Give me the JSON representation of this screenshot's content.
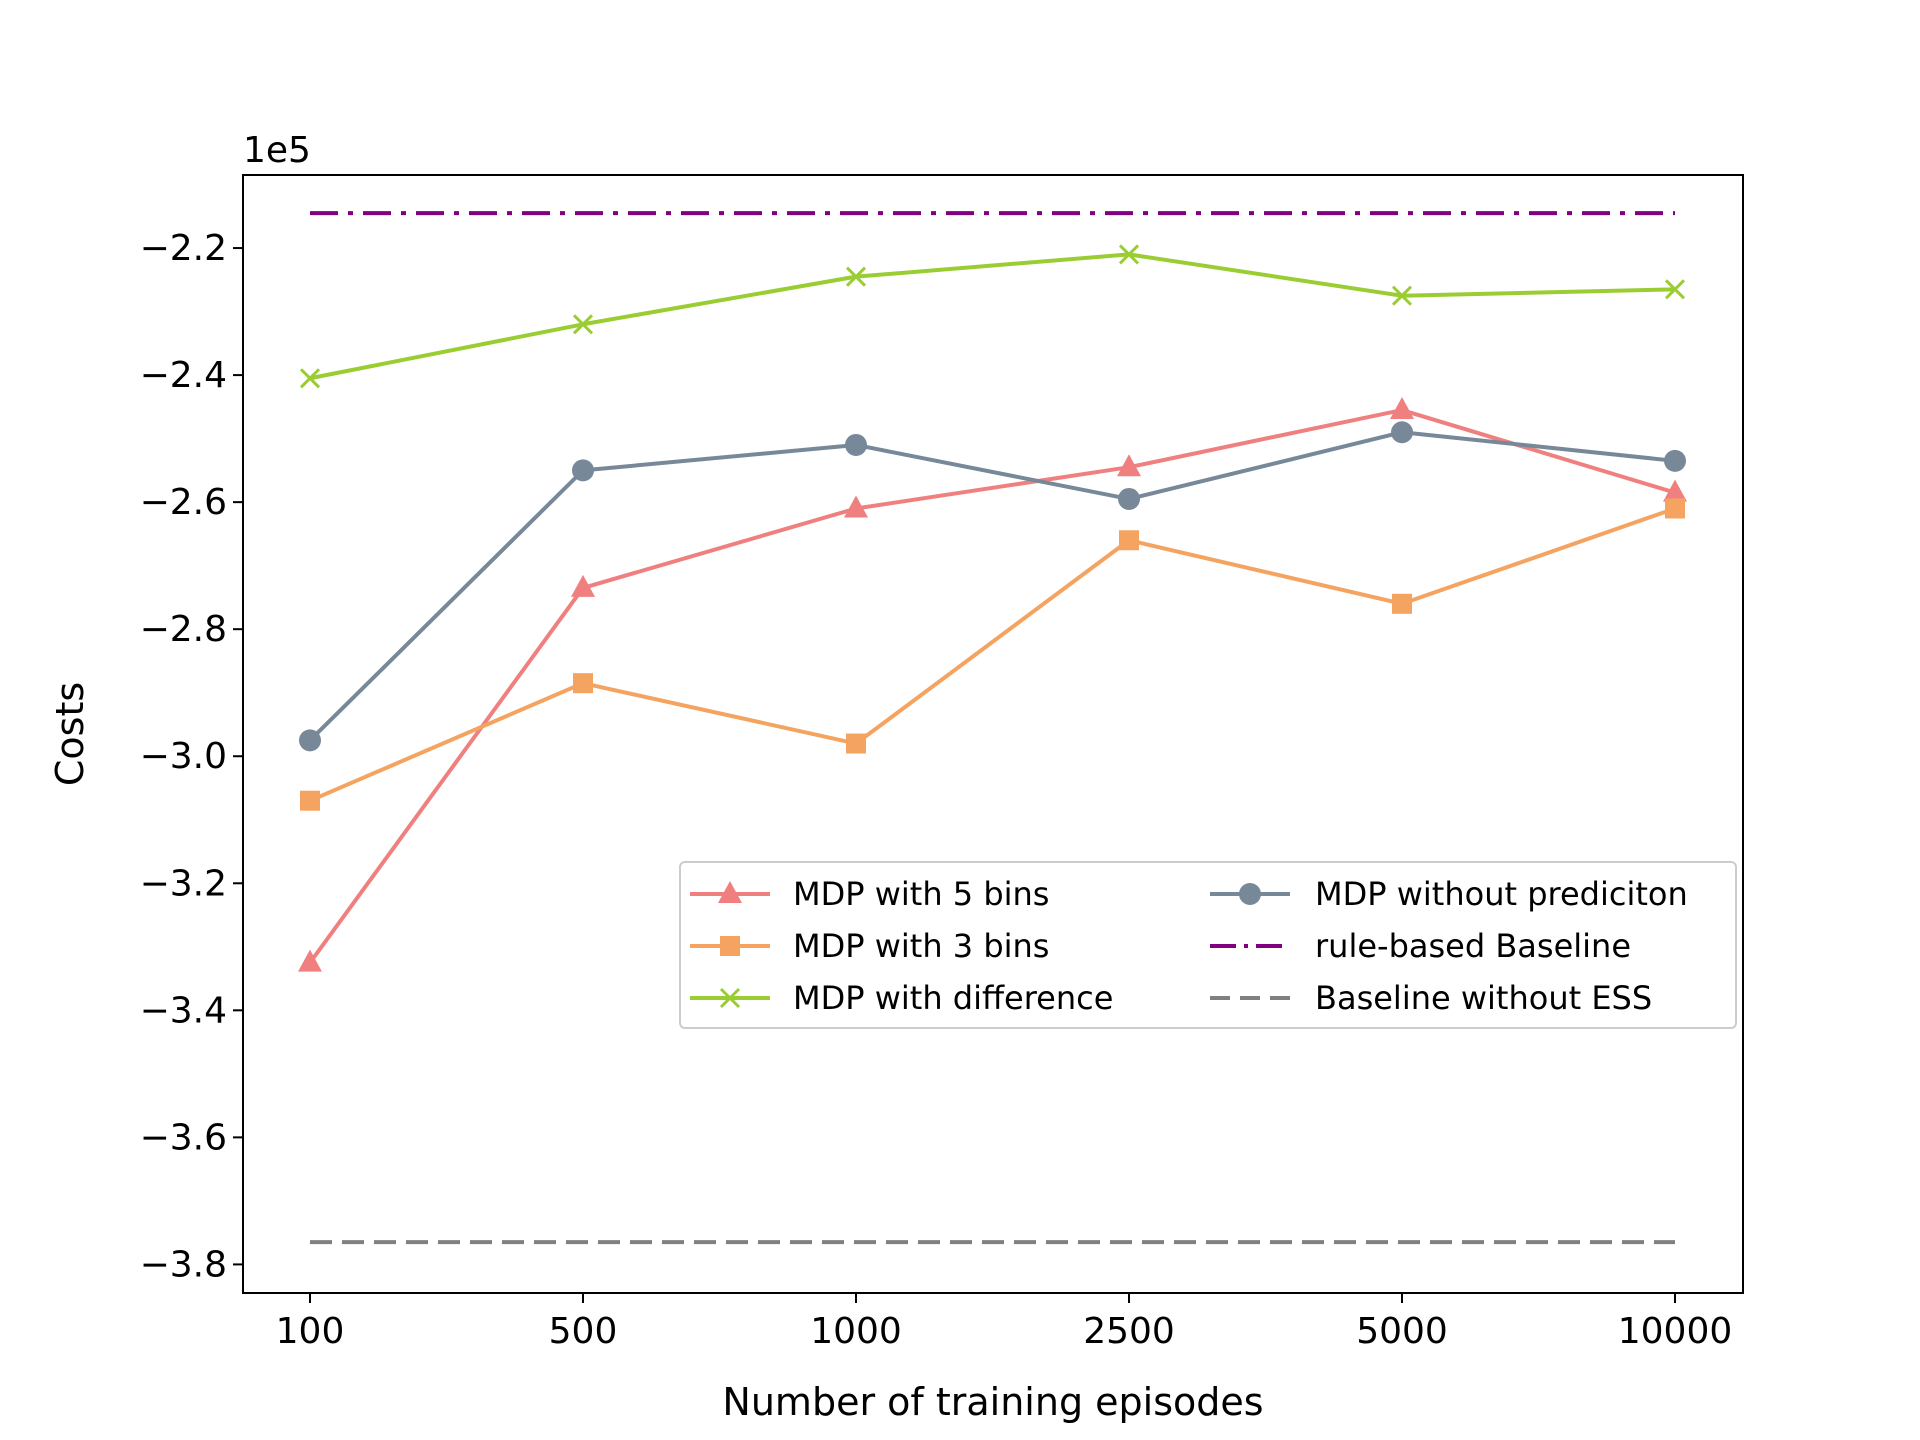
{
  "chart_data": {
    "type": "line",
    "categories": [
      "100",
      "500",
      "1000",
      "2500",
      "5000",
      "10000"
    ],
    "xlabel": "Number of training episodes",
    "ylabel": "Costs",
    "offset_text": "1e5",
    "y_ticks": [
      "−3.8",
      "−3.6",
      "−3.4",
      "−3.2",
      "−3.0",
      "−2.8",
      "−2.6",
      "−2.4",
      "−2.2"
    ],
    "y_tick_values": [
      -3.8,
      -3.6,
      -3.4,
      -3.2,
      -3.0,
      -2.8,
      -2.6,
      -2.4,
      -2.2
    ],
    "ylim": [
      -3.845,
      -2.085
    ],
    "y_scale_factor": 100000,
    "grid": false,
    "legend_position": "center-right",
    "series": [
      {
        "name": "MDP with 5 bins",
        "color": "#F08080",
        "marker": "triangle",
        "linestyle": "solid",
        "values": [
          -3.325,
          -2.735,
          -2.61,
          -2.545,
          -2.455,
          -2.585
        ]
      },
      {
        "name": "MDP with 3 bins",
        "color": "#F4A460",
        "marker": "square",
        "linestyle": "solid",
        "values": [
          -3.07,
          -2.885,
          -2.98,
          -2.66,
          -2.76,
          -2.61
        ]
      },
      {
        "name": "MDP with difference",
        "color": "#9ACD32",
        "marker": "x",
        "linestyle": "solid",
        "values": [
          -2.405,
          -2.32,
          -2.245,
          -2.21,
          -2.275,
          -2.265
        ]
      },
      {
        "name": "MDP without prediciton",
        "color": "#778899",
        "marker": "circle",
        "linestyle": "solid",
        "values": [
          -2.975,
          -2.55,
          -2.51,
          -2.595,
          -2.49,
          -2.535
        ]
      },
      {
        "name": "rule-based Baseline",
        "color": "#800080",
        "marker": "none",
        "linestyle": "dashdot",
        "values": [
          -2.145,
          -2.145,
          -2.145,
          -2.145,
          -2.145,
          -2.145
        ]
      },
      {
        "name": "Baseline without ESS",
        "color": "#808080",
        "marker": "none",
        "linestyle": "dashed",
        "values": [
          -3.765,
          -3.765,
          -3.765,
          -3.765,
          -3.765,
          -3.765
        ]
      }
    ]
  }
}
